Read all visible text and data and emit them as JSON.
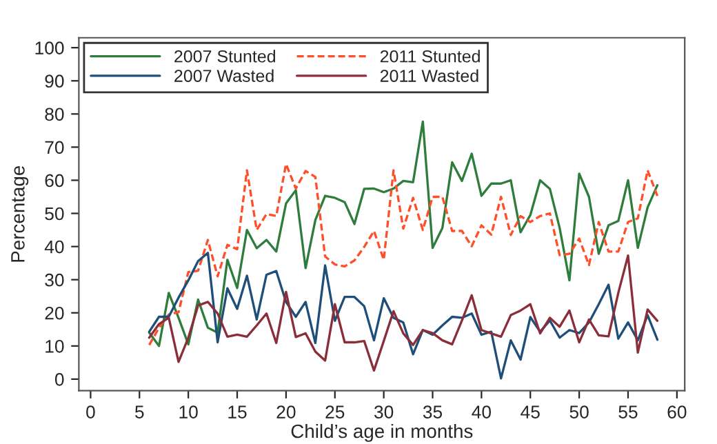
{
  "chart_data": {
    "type": "line",
    "xlabel": "Child’s age in months",
    "ylabel": "Percentage",
    "x": [
      6,
      7,
      8,
      9,
      10,
      11,
      12,
      13,
      14,
      15,
      16,
      17,
      18,
      19,
      20,
      21,
      22,
      23,
      24,
      25,
      26,
      27,
      28,
      29,
      30,
      31,
      32,
      33,
      34,
      35,
      36,
      37,
      38,
      39,
      40,
      41,
      42,
      43,
      44,
      45,
      46,
      47,
      48,
      49,
      50,
      51,
      52,
      53,
      54,
      55,
      56,
      57,
      58
    ],
    "series": [
      {
        "name": "2007 Stunted",
        "color": "#2e7d3c",
        "line_style": "solid",
        "values": [
          14,
          10,
          26,
          18.5,
          10.5,
          24,
          15.5,
          14,
          36,
          27.5,
          45,
          39.5,
          42,
          38.5,
          53,
          57,
          33.5,
          48,
          55.3,
          54.7,
          53.4,
          46.8,
          57.4,
          57.5,
          56.4,
          57.5,
          59.8,
          59.4,
          77.7,
          39.6,
          45.6,
          65.4,
          59.8,
          68,
          55.3,
          59,
          59,
          60,
          44.3,
          49.5,
          60,
          57.4,
          45.6,
          29.8,
          62,
          55,
          37.8,
          46.4,
          47.7,
          60,
          39.6,
          51.8,
          58.5
        ]
      },
      {
        "name": "2011 Stunted",
        "color": "#ff4f2a",
        "line_style": "dashed",
        "values": [
          10.3,
          15.5,
          19.5,
          20.2,
          32.3,
          32.7,
          42,
          31,
          40.5,
          39.2,
          63,
          45,
          49.8,
          49.2,
          64.9,
          57.5,
          62.8,
          61,
          37,
          34.6,
          34,
          35.8,
          39.9,
          44.7,
          36,
          63,
          45.4,
          54.7,
          45,
          55,
          55,
          44.7,
          44.7,
          40.1,
          46.4,
          43.6,
          55,
          43.5,
          49.2,
          47.4,
          49.2,
          50,
          37.4,
          37.8,
          42.4,
          34.4,
          47.4,
          38.5,
          38.5,
          47.4,
          48.5,
          63,
          55.3
        ]
      },
      {
        "name": "2007 Wasted",
        "color": "#1f4e79",
        "line_style": "solid",
        "values": [
          14.3,
          18.8,
          18.8,
          24.6,
          29.8,
          35.6,
          38.1,
          11.1,
          27.4,
          21.2,
          31.2,
          18,
          31.5,
          32.6,
          23.3,
          18.8,
          23.3,
          10.9,
          34.3,
          17.6,
          24.8,
          24.8,
          22,
          11.7,
          24.4,
          18.5,
          17.1,
          7.5,
          14.8,
          13.4,
          16.2,
          18.8,
          18.5,
          19.8,
          13.4,
          14.3,
          0.2,
          11.7,
          5.9,
          18.7,
          14.3,
          17.7,
          12.5,
          14.8,
          13.9,
          17.1,
          22.6,
          28.5,
          12.2,
          17.1,
          11.7,
          19.3,
          11.9
        ]
      },
      {
        "name": "2011 Wasted",
        "color": "#8b2e3a",
        "line_style": "solid",
        "values": [
          12.5,
          16.6,
          18.5,
          5.2,
          12.5,
          22.2,
          23.3,
          19.8,
          12.8,
          13.4,
          12.8,
          16.2,
          19.8,
          10.9,
          26.3,
          12.7,
          13.8,
          8.3,
          5.6,
          22.6,
          11.1,
          11.1,
          11.5,
          2.6,
          11.5,
          20.5,
          13.8,
          10.3,
          14.8,
          13.9,
          11.7,
          10.5,
          17.7,
          25.3,
          14.8,
          13.8,
          12.8,
          19.3,
          20.7,
          22.6,
          13.8,
          18.5,
          15.8,
          20.7,
          11.1,
          18,
          13.2,
          12.9,
          26,
          37.3,
          8,
          21,
          17.6
        ]
      }
    ],
    "xlim": [
      -1.2,
      60.8
    ],
    "xticks": [
      0,
      5,
      10,
      15,
      20,
      25,
      30,
      35,
      40,
      45,
      50,
      55,
      60
    ],
    "ylim": [
      -3.5,
      103
    ],
    "yticks": [
      0,
      10,
      20,
      30,
      40,
      50,
      60,
      70,
      80,
      90,
      100
    ],
    "grid": false,
    "legend": "top left",
    "marker": "none"
  }
}
